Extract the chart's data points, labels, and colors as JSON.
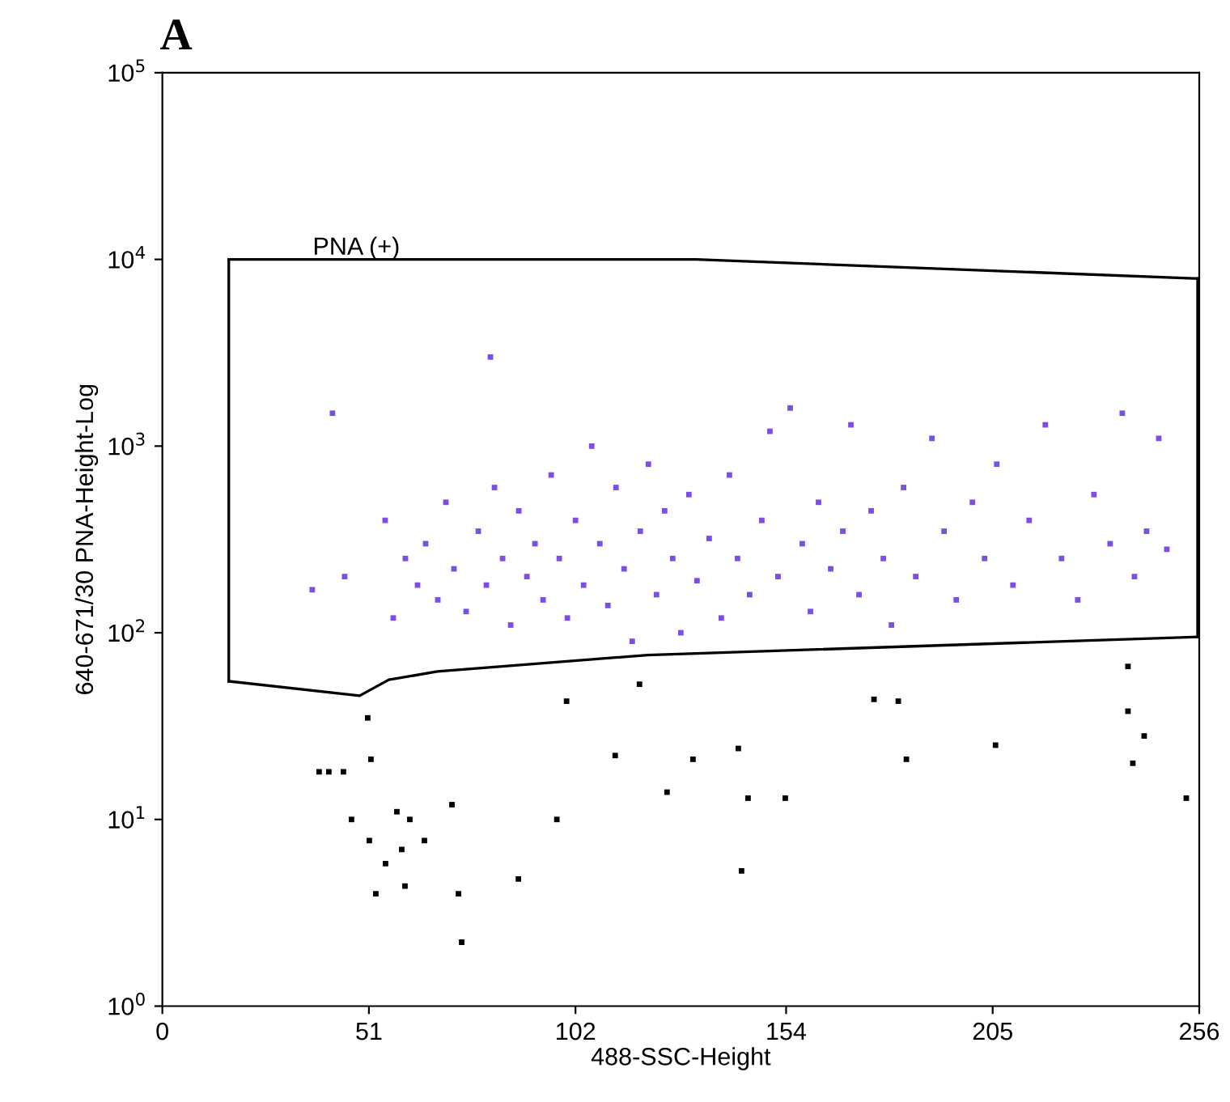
{
  "chart_data": {
    "type": "scatter",
    "title": "A",
    "xlabel": "488-SSC-Height",
    "ylabel": "640-671/30 PNA-Height-Log",
    "log": "y",
    "grid": false,
    "legend": false,
    "marker": "square",
    "xlim": [
      0,
      256
    ],
    "xticks": [
      0,
      51,
      102,
      154,
      205,
      256
    ],
    "ylim": [
      1,
      100000
    ],
    "yticks": [
      {
        "value": 1,
        "label": "10$^{0}$"
      },
      {
        "value": 10,
        "label": "10$^{1}$"
      },
      {
        "value": 100,
        "label": "10$^{2}$"
      },
      {
        "value": 1000,
        "label": "10$^{3}$"
      },
      {
        "value": 10000,
        "label": "10$^{4}$"
      },
      {
        "value": 100000,
        "label": "10$^{5}$"
      }
    ],
    "annotations": [
      "PNA (+)"
    ],
    "series": [
      {
        "color": "#7b4fe0",
        "x": [
          37,
          42,
          45,
          55,
          57,
          60,
          63,
          65,
          68,
          70,
          72,
          75,
          78,
          80,
          81,
          82,
          84,
          86,
          88,
          90,
          92,
          94,
          96,
          98,
          100,
          102,
          104,
          106,
          108,
          110,
          112,
          114,
          116,
          118,
          120,
          122,
          124,
          126,
          128,
          130,
          132,
          135,
          138,
          140,
          142,
          145,
          148,
          150,
          152,
          155,
          158,
          160,
          162,
          165,
          168,
          170,
          172,
          175,
          178,
          180,
          183,
          186,
          190,
          193,
          196,
          200,
          203,
          206,
          210,
          214,
          218,
          222,
          226,
          230,
          234,
          237,
          240,
          243,
          246,
          248
        ],
        "values": [
          170,
          1500,
          200,
          400,
          120,
          250,
          180,
          300,
          150,
          500,
          220,
          130,
          350,
          180,
          3000,
          600,
          250,
          110,
          450,
          200,
          300,
          150,
          700,
          250,
          120,
          400,
          180,
          1000,
          300,
          140,
          600,
          220,
          90,
          350,
          800,
          160,
          450,
          250,
          100,
          550,
          190,
          320,
          120,
          700,
          250,
          160,
          400,
          1200,
          200,
          1600,
          300,
          130,
          500,
          220,
          350,
          1300,
          160,
          450,
          250,
          110,
          600,
          200,
          1100,
          350,
          150,
          500,
          250,
          800,
          180,
          400,
          1300,
          250,
          150,
          550,
          300,
          1500,
          200,
          350,
          1100,
          280
        ]
      },
      {
        "color": "#000000",
        "x": [
          38.7,
          41.1,
          44.7,
          46.7,
          50.7,
          51.1,
          51.5,
          52.7,
          55.1,
          57.9,
          59.1,
          59.9,
          61.1,
          64.7,
          71.5,
          73.1,
          73.9,
          87.9,
          97.4,
          99.8,
          111.8,
          117.8,
          124.6,
          131,
          142.2,
          143,
          144.6,
          153.8,
          175.7,
          181.7,
          183.7,
          205.7,
          238.4,
          238.4,
          239.6,
          242.4,
          252.8
        ],
        "values": [
          18,
          18,
          18,
          10,
          35,
          7.7,
          21,
          4.0,
          5.8,
          11,
          6.9,
          4.4,
          10,
          7.7,
          12,
          4.0,
          2.2,
          4.8,
          10,
          43,
          22,
          53,
          14,
          21,
          24,
          5.3,
          13,
          13,
          44,
          43,
          21,
          25,
          66,
          38,
          20,
          28,
          13
        ]
      },
      {
        "type": "line",
        "color": "#000000",
        "marker": "none",
        "line_style": "solid",
        "x": [
          16.4,
          131.8,
          255.6
        ],
        "values": [
          10000,
          10000,
          7900
        ]
      },
      {
        "type": "line",
        "color": "#000000",
        "marker": "none",
        "line_style": "solid",
        "x": [
          16.4,
          48.7,
          55.9,
          67.9,
          119.8,
          255.6
        ],
        "values": [
          55,
          46,
          56,
          62,
          76,
          95
        ]
      },
      {
        "type": "line",
        "color": "#000000",
        "marker": "none",
        "line_style": "solid",
        "x": [
          16.4,
          16.4
        ],
        "values": [
          55,
          10000
        ]
      },
      {
        "type": "line",
        "color": "#000000",
        "marker": "none",
        "line_style": "solid",
        "x": [
          255.6,
          255.6
        ],
        "values": [
          95,
          7900
        ]
      }
    ]
  }
}
